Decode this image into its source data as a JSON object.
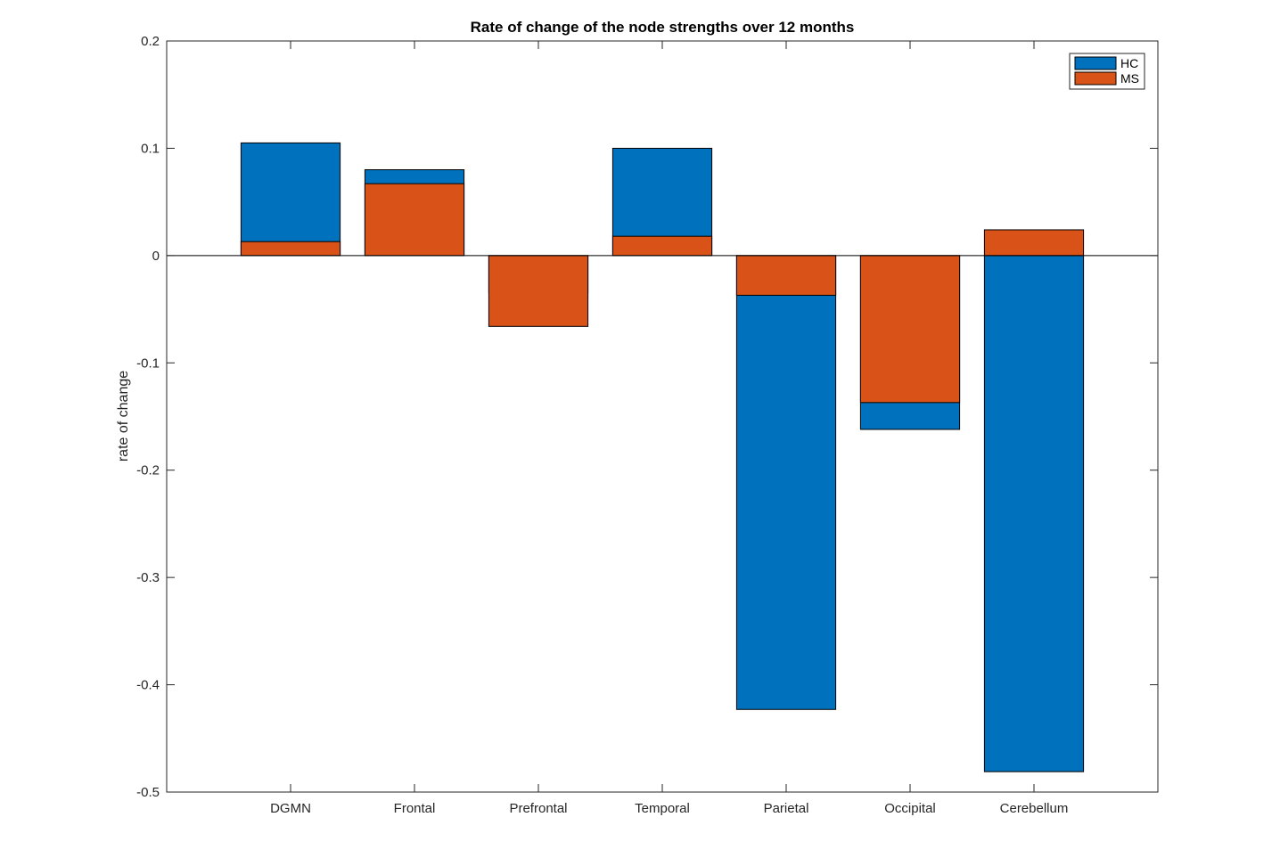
{
  "chart_data": {
    "type": "bar",
    "title": "Rate of change of the node strengths over 12 months",
    "xlabel": "",
    "ylabel": "rate of change",
    "categories": [
      "DGMN",
      "Frontal",
      "Prefrontal",
      "Temporal",
      "Parietal",
      "Occipital",
      "Cerebellum"
    ],
    "series": [
      {
        "name": "HC",
        "color": "#0072BD",
        "values": [
          0.105,
          0.08,
          -0.035,
          0.1,
          -0.423,
          -0.162,
          -0.481
        ]
      },
      {
        "name": "MS",
        "color": "#D95319",
        "values": [
          0.013,
          0.067,
          -0.066,
          0.018,
          -0.037,
          -0.137,
          0.024
        ]
      }
    ],
    "ylim": [
      -0.5,
      0.2
    ],
    "yticks": [
      -0.5,
      -0.4,
      -0.3,
      -0.2,
      -0.1,
      0,
      0.1,
      0.2
    ],
    "ytick_labels": [
      "-0.5",
      "-0.4",
      "-0.3",
      "-0.2",
      "-0.1",
      "0",
      "0.1",
      "0.2"
    ],
    "grid": false,
    "legend_position": "top-right",
    "bar_layout": "overlapped"
  }
}
